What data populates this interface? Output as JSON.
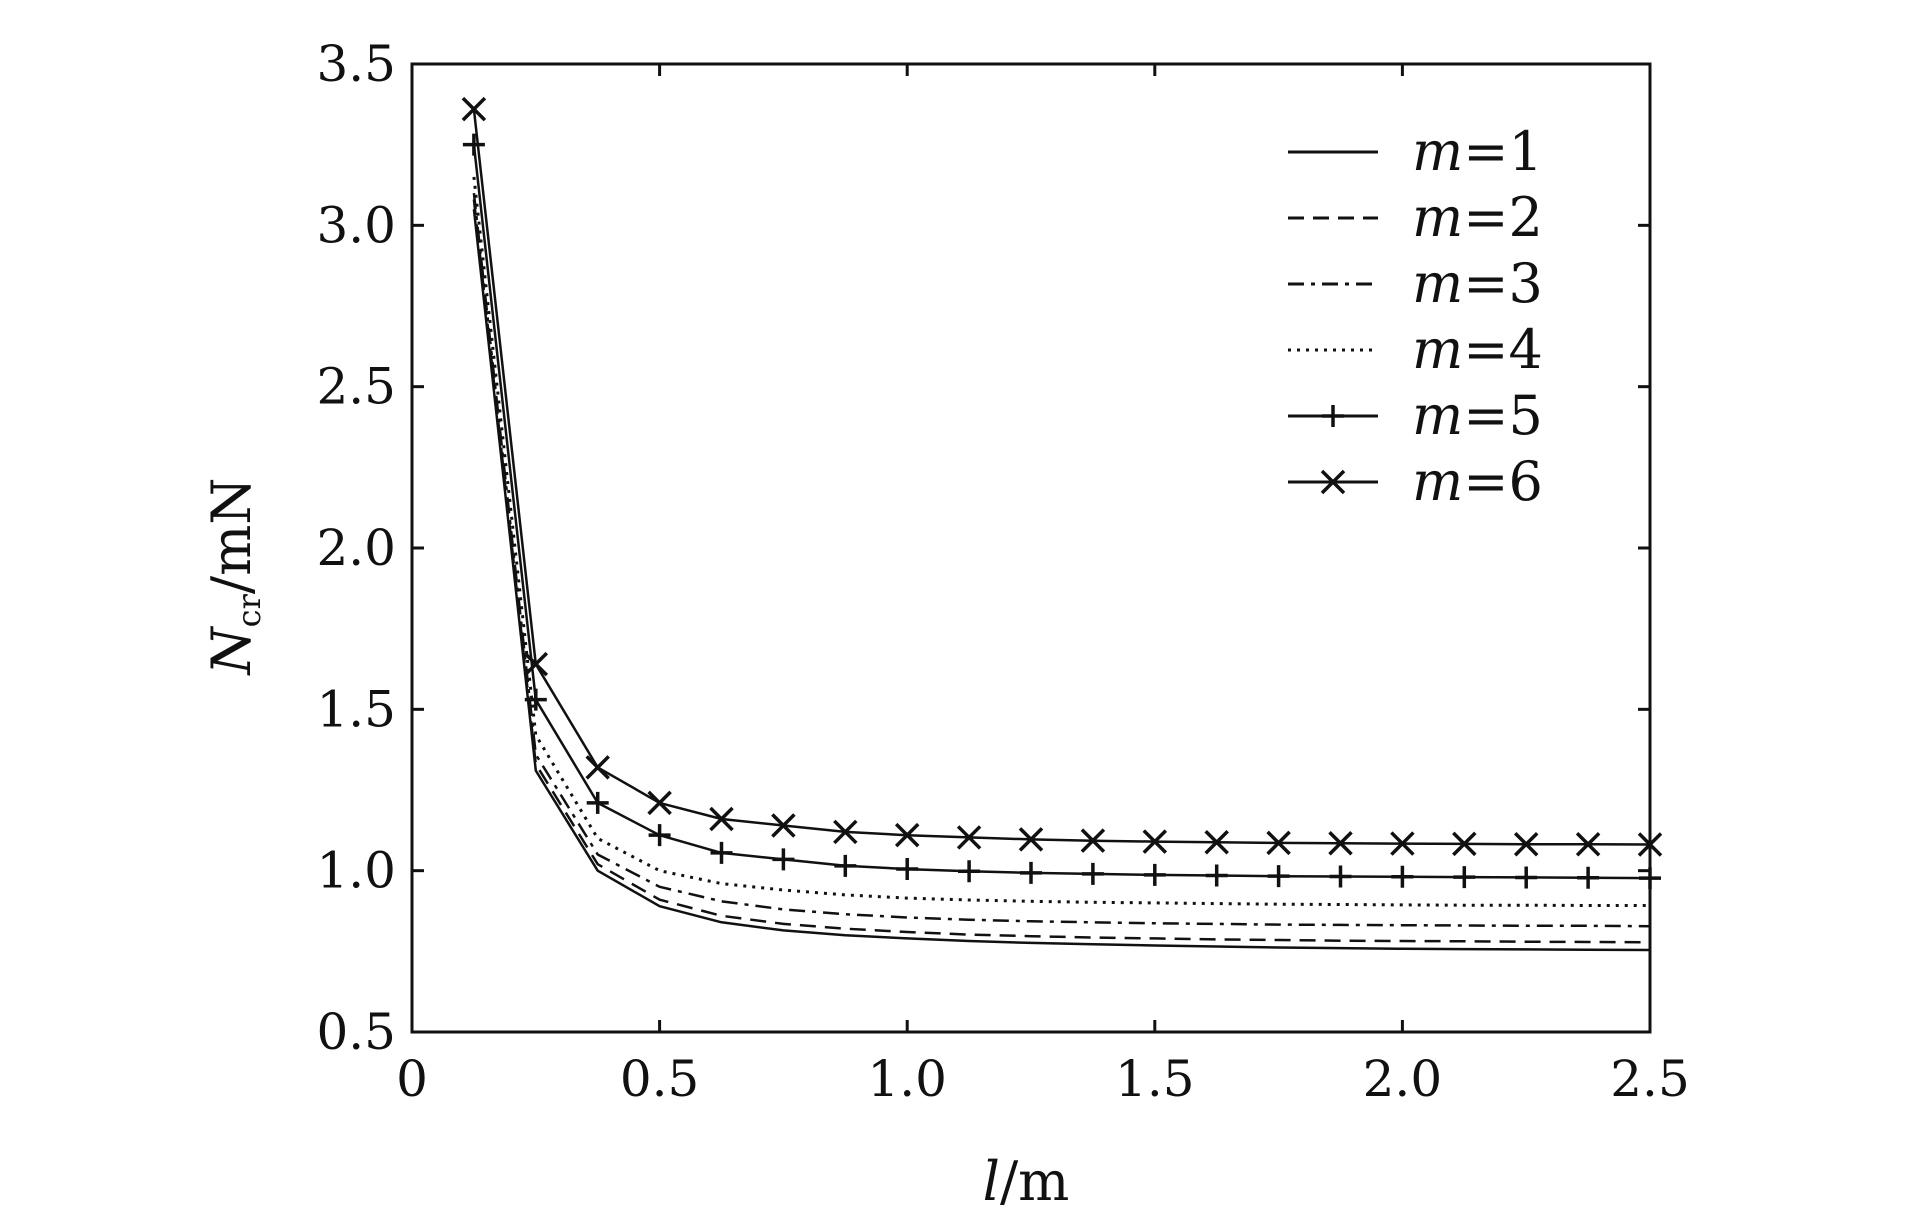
{
  "chart_data": {
    "type": "line",
    "xlabel": {
      "var": "l",
      "unit": "/m"
    },
    "ylabel": {
      "var": "N",
      "sub": "cr",
      "unit": "/mN"
    },
    "xlim": [
      0,
      2.5
    ],
    "ylim": [
      0.5,
      3.5
    ],
    "xticks": [
      "0",
      "0.5",
      "1.0",
      "1.5",
      "2.0",
      "2.5"
    ],
    "yticks": [
      "0.5",
      "1.0",
      "1.5",
      "2.0",
      "2.5",
      "3.0",
      "3.5"
    ],
    "grid": false,
    "legend_position": "top-right",
    "x": [
      0.125,
      0.25,
      0.375,
      0.5,
      0.625,
      0.75,
      0.875,
      1.0,
      1.125,
      1.25,
      1.375,
      1.5,
      1.625,
      1.75,
      1.875,
      2.0,
      2.125,
      2.25,
      2.375,
      2.5
    ],
    "series": [
      {
        "name": "m=1",
        "var": "m",
        "eq": "=1",
        "style": "solid",
        "marker": "none",
        "values": [
          3.05,
          1.31,
          1.0,
          0.89,
          0.84,
          0.815,
          0.8,
          0.79,
          0.782,
          0.776,
          0.772,
          0.768,
          0.765,
          0.762,
          0.76,
          0.758,
          0.757,
          0.756,
          0.755,
          0.754
        ]
      },
      {
        "name": "m=2",
        "var": "m",
        "eq": "=2",
        "style": "dashed",
        "marker": "none",
        "values": [
          3.08,
          1.33,
          1.02,
          0.91,
          0.86,
          0.835,
          0.82,
          0.81,
          0.802,
          0.797,
          0.793,
          0.79,
          0.787,
          0.785,
          0.783,
          0.782,
          0.781,
          0.78,
          0.779,
          0.778
        ]
      },
      {
        "name": "m=3",
        "var": "m",
        "eq": "=3",
        "style": "dashdot",
        "marker": "none",
        "values": [
          3.1,
          1.36,
          1.05,
          0.95,
          0.905,
          0.88,
          0.865,
          0.855,
          0.848,
          0.843,
          0.84,
          0.837,
          0.835,
          0.833,
          0.832,
          0.831,
          0.83,
          0.829,
          0.829,
          0.828
        ]
      },
      {
        "name": "m=4",
        "var": "m",
        "eq": "=4",
        "style": "dotted",
        "marker": "none",
        "values": [
          3.15,
          1.42,
          1.1,
          1.0,
          0.96,
          0.94,
          0.925,
          0.915,
          0.909,
          0.905,
          0.902,
          0.9,
          0.898,
          0.896,
          0.895,
          0.894,
          0.893,
          0.893,
          0.892,
          0.892
        ]
      },
      {
        "name": "m=5",
        "var": "m",
        "eq": "=5",
        "style": "solid",
        "marker": "plus",
        "values": [
          3.25,
          1.53,
          1.21,
          1.11,
          1.055,
          1.035,
          1.015,
          1.005,
          0.998,
          0.993,
          0.99,
          0.987,
          0.985,
          0.983,
          0.982,
          0.981,
          0.98,
          0.979,
          0.978,
          0.977
        ]
      },
      {
        "name": "m=6",
        "var": "m",
        "eq": "=6",
        "style": "solid",
        "marker": "x",
        "values": [
          3.36,
          1.64,
          1.32,
          1.21,
          1.16,
          1.14,
          1.12,
          1.11,
          1.103,
          1.097,
          1.093,
          1.09,
          1.088,
          1.086,
          1.085,
          1.084,
          1.083,
          1.082,
          1.082,
          1.081
        ]
      }
    ]
  }
}
